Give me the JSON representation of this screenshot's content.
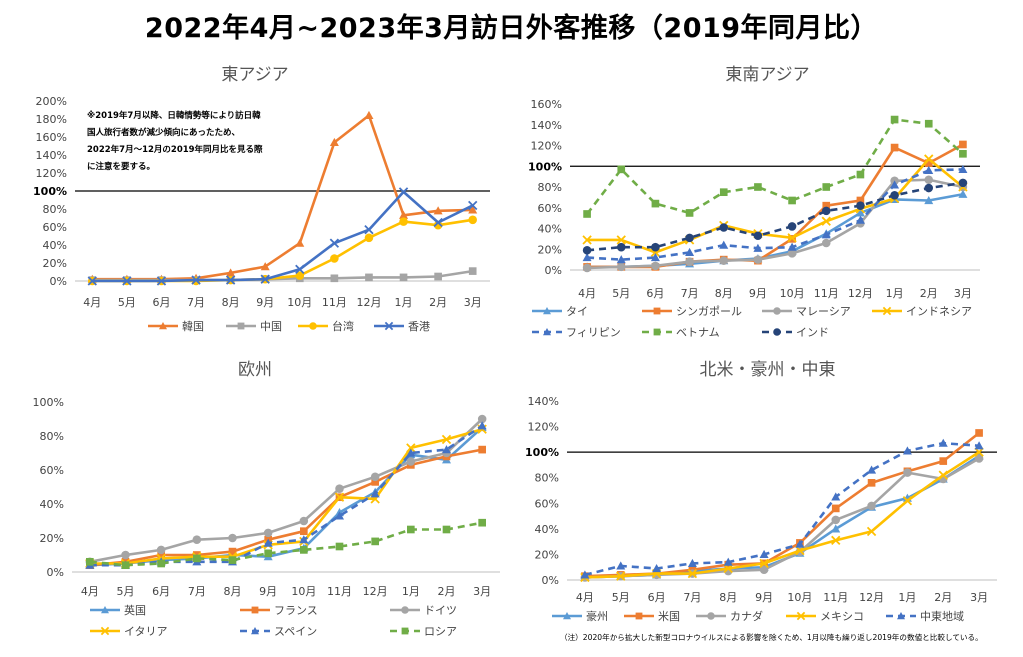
{
  "page": {
    "title": "2022年4月~2023年3月訪日外客推移（2019年同月比）",
    "footnote": "（注）2020年から拡大した新型コロナウイルスによる影響を除くため、1月以降も繰り返し2019年の数値と比較している。"
  },
  "chart_data": [
    {
      "id": "east_asia",
      "type": "line",
      "title": "東アジア",
      "categories": [
        "4月",
        "5月",
        "6月",
        "7月",
        "8月",
        "9月",
        "10月",
        "11月",
        "12月",
        "1月",
        "2月",
        "3月"
      ],
      "ylim": [
        0,
        200
      ],
      "yticks": [
        "0%",
        "20%",
        "40%",
        "60%",
        "80%",
        "100%",
        "120%",
        "140%",
        "160%",
        "180%",
        "200%"
      ],
      "reference_line": 100,
      "annotation": [
        "※2019年7月以降、日韓情勢等により訪日韓",
        "国人旅行者数が減少傾向にあったため、",
        "2022年7月～12月の2019年同月比を見る際",
        "に注意を要する。"
      ],
      "series": [
        {
          "name": "韓国",
          "color": "#ED7D31",
          "marker": "triangle",
          "dash": false,
          "values": [
            2,
            2,
            2,
            3,
            9,
            16,
            42,
            154,
            184,
            73,
            78,
            79
          ]
        },
        {
          "name": "中国",
          "color": "#A5A5A5",
          "marker": "square",
          "dash": false,
          "values": [
            1,
            1,
            1,
            1,
            1,
            2,
            3,
            3,
            4,
            4,
            5,
            11
          ]
        },
        {
          "name": "台湾",
          "color": "#FFC000",
          "marker": "circle",
          "dash": false,
          "values": [
            0,
            0,
            0,
            0,
            1,
            2,
            6,
            25,
            48,
            66,
            62,
            68
          ]
        },
        {
          "name": "香港",
          "color": "#4472C4",
          "marker": "x",
          "dash": false,
          "values": [
            0,
            0,
            0,
            1,
            1,
            2,
            13,
            42,
            57,
            99,
            65,
            84
          ]
        }
      ]
    },
    {
      "id": "southeast_asia",
      "type": "line",
      "title": "東南アジア",
      "categories": [
        "4月",
        "5月",
        "6月",
        "7月",
        "8月",
        "9月",
        "10月",
        "11月",
        "12月",
        "1月",
        "2月",
        "3月"
      ],
      "ylim": [
        0,
        160
      ],
      "yticks": [
        "0%",
        "20%",
        "40%",
        "60%",
        "80%",
        "100%",
        "120%",
        "140%",
        "160%"
      ],
      "reference_line": 100,
      "series": [
        {
          "name": "タイ",
          "color": "#5B9BD5",
          "marker": "triangle",
          "dash": false,
          "values": [
            3,
            3,
            4,
            6,
            9,
            11,
            18,
            35,
            55,
            68,
            67,
            73
          ]
        },
        {
          "name": "シンガポール",
          "color": "#ED7D31",
          "marker": "square",
          "dash": false,
          "values": [
            3,
            3,
            3,
            8,
            10,
            9,
            30,
            62,
            67,
            118,
            103,
            121
          ]
        },
        {
          "name": "マレーシア",
          "color": "#A5A5A5",
          "marker": "circle",
          "dash": false,
          "values": [
            2,
            3,
            4,
            8,
            9,
            10,
            16,
            26,
            45,
            86,
            87,
            80
          ]
        },
        {
          "name": "インドネシア",
          "color": "#FFC000",
          "marker": "x",
          "dash": false,
          "values": [
            29,
            29,
            17,
            29,
            43,
            35,
            31,
            47,
            59,
            69,
            107,
            80
          ]
        },
        {
          "name": "フィリピン",
          "color": "#4472C4",
          "marker": "triangle",
          "dash": true,
          "values": [
            12,
            10,
            12,
            17,
            24,
            21,
            22,
            34,
            48,
            82,
            96,
            97
          ]
        },
        {
          "name": "ベトナム",
          "color": "#70AD47",
          "marker": "square",
          "dash": true,
          "values": [
            54,
            97,
            64,
            55,
            75,
            80,
            67,
            80,
            92,
            145,
            141,
            112
          ]
        },
        {
          "name": "インド",
          "color": "#264478",
          "marker": "circle",
          "dash": true,
          "values": [
            19,
            22,
            22,
            31,
            41,
            33,
            42,
            57,
            62,
            72,
            79,
            84
          ]
        }
      ]
    },
    {
      "id": "europe",
      "type": "line",
      "title": "欧州",
      "categories": [
        "4月",
        "5月",
        "6月",
        "7月",
        "8月",
        "9月",
        "10月",
        "11月",
        "12月",
        "1月",
        "2月",
        "3月"
      ],
      "ylim": [
        0,
        100
      ],
      "yticks": [
        "0%",
        "20%",
        "40%",
        "60%",
        "80%",
        "100%"
      ],
      "series": [
        {
          "name": "英国",
          "color": "#5B9BD5",
          "marker": "triangle",
          "dash": false,
          "values": [
            4,
            5,
            7,
            8,
            10,
            9,
            14,
            35,
            47,
            69,
            66,
            85
          ]
        },
        {
          "name": "フランス",
          "color": "#ED7D31",
          "marker": "square",
          "dash": false,
          "values": [
            4,
            6,
            10,
            10,
            12,
            19,
            24,
            44,
            53,
            63,
            68,
            72
          ]
        },
        {
          "name": "ドイツ",
          "color": "#A5A5A5",
          "marker": "circle",
          "dash": false,
          "values": [
            6,
            10,
            13,
            19,
            20,
            23,
            30,
            49,
            56,
            65,
            70,
            90
          ]
        },
        {
          "name": "イタリア",
          "color": "#FFC000",
          "marker": "x",
          "dash": false,
          "values": [
            5,
            5,
            8,
            9,
            9,
            16,
            18,
            44,
            43,
            73,
            78,
            84
          ]
        },
        {
          "name": "スペイン",
          "color": "#4472C4",
          "marker": "triangle",
          "dash": true,
          "values": [
            4,
            4,
            6,
            6,
            6,
            17,
            19,
            33,
            46,
            70,
            72,
            86
          ]
        },
        {
          "name": "ロシア",
          "color": "#70AD47",
          "marker": "square",
          "dash": true,
          "values": [
            6,
            4,
            5,
            8,
            7,
            11,
            13,
            15,
            18,
            25,
            25,
            29
          ]
        }
      ]
    },
    {
      "id": "north_america_australia_middle_east",
      "type": "line",
      "title": "北米・豪州・中東",
      "categories": [
        "4月",
        "5月",
        "6月",
        "7月",
        "8月",
        "9月",
        "10月",
        "11月",
        "12月",
        "1月",
        "2月",
        "3月"
      ],
      "ylim": [
        0,
        140
      ],
      "yticks": [
        "0%",
        "20%",
        "40%",
        "60%",
        "80%",
        "100%",
        "120%",
        "140%"
      ],
      "reference_line": 100,
      "series": [
        {
          "name": "豪州",
          "color": "#5B9BD5",
          "marker": "triangle",
          "dash": false,
          "values": [
            2,
            3,
            4,
            7,
            9,
            10,
            21,
            40,
            57,
            64,
            79,
            97
          ]
        },
        {
          "name": "米国",
          "color": "#ED7D31",
          "marker": "square",
          "dash": false,
          "values": [
            3,
            4,
            5,
            8,
            12,
            13,
            29,
            56,
            76,
            85,
            93,
            115
          ]
        },
        {
          "name": "カナダ",
          "color": "#A5A5A5",
          "marker": "circle",
          "dash": false,
          "values": [
            2,
            3,
            4,
            5,
            7,
            8,
            22,
            47,
            58,
            84,
            79,
            95
          ]
        },
        {
          "name": "メキシコ",
          "color": "#FFC000",
          "marker": "x",
          "dash": false,
          "values": [
            2,
            3,
            5,
            5,
            9,
            13,
            23,
            31,
            38,
            62,
            82,
            100
          ]
        },
        {
          "name": "中東地域",
          "color": "#4472C4",
          "marker": "triangle",
          "dash": true,
          "values": [
            4,
            11,
            9,
            13,
            14,
            20,
            28,
            65,
            86,
            101,
            107,
            105
          ]
        }
      ]
    }
  ]
}
